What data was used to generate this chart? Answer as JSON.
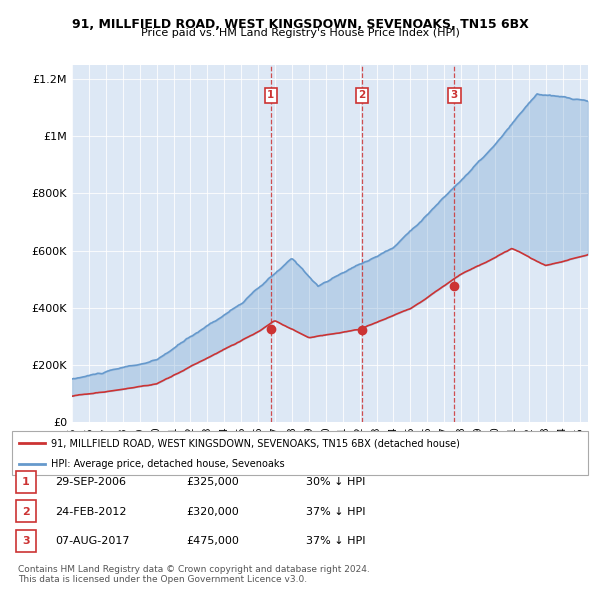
{
  "title": "91, MILLFIELD ROAD, WEST KINGSDOWN, SEVENOAKS, TN15 6BX",
  "subtitle": "Price paid vs. HM Land Registry's House Price Index (HPI)",
  "ylim": [
    0,
    1250000
  ],
  "yticks": [
    0,
    200000,
    400000,
    600000,
    800000,
    1000000,
    1200000
  ],
  "ytick_labels": [
    "£0",
    "£200K",
    "£400K",
    "£600K",
    "£800K",
    "£1M",
    "£1.2M"
  ],
  "hpi_color": "#6699cc",
  "price_color": "#cc3333",
  "vline_color": "#cc3333",
  "bg_color": "#dde8f5",
  "transactions": [
    {
      "date": 2006.75,
      "price": 325000,
      "label": "1"
    },
    {
      "date": 2012.15,
      "price": 320000,
      "label": "2"
    },
    {
      "date": 2017.6,
      "price": 475000,
      "label": "3"
    }
  ],
  "legend_items": [
    {
      "label": "91, MILLFIELD ROAD, WEST KINGSDOWN, SEVENOAKS, TN15 6BX (detached house)",
      "color": "#cc3333"
    },
    {
      "label": "HPI: Average price, detached house, Sevenoaks",
      "color": "#6699cc"
    }
  ],
  "footer": "Contains HM Land Registry data © Crown copyright and database right 2024.\nThis data is licensed under the Open Government Licence v3.0.",
  "table_rows": [
    {
      "num": "1",
      "date": "29-SEP-2006",
      "price": "£325,000",
      "pct": "30% ↓ HPI"
    },
    {
      "num": "2",
      "date": "24-FEB-2012",
      "price": "£320,000",
      "pct": "37% ↓ HPI"
    },
    {
      "num": "3",
      "date": "07-AUG-2017",
      "price": "£475,000",
      "pct": "37% ↓ HPI"
    }
  ]
}
